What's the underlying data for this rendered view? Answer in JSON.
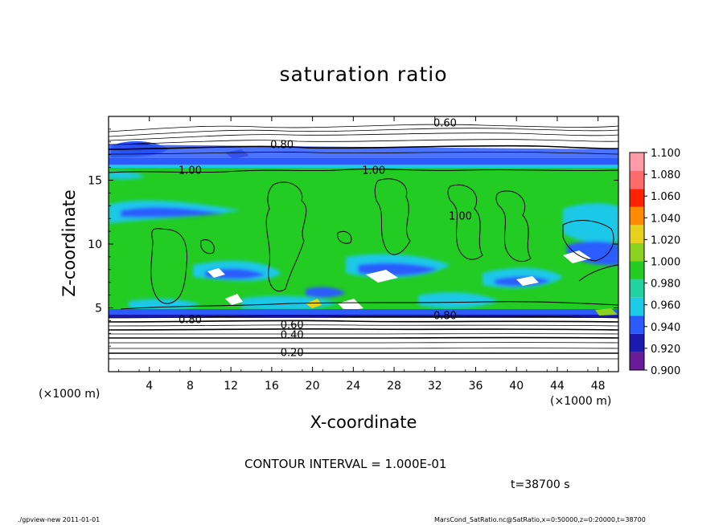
{
  "chart_data": {
    "type": "heatmap",
    "title": "saturation ratio",
    "xlabel": "X-coordinate",
    "ylabel": "Z-coordinate",
    "x_unit": "(×1000 m)",
    "x_ticks": [
      4,
      8,
      12,
      16,
      20,
      24,
      28,
      32,
      36,
      40,
      44,
      48
    ],
    "y_ticks": [
      5,
      10,
      15
    ],
    "xlim": [
      0,
      50
    ],
    "ylim": [
      0,
      20
    ],
    "colorbar": {
      "levels": [
        0.9,
        0.92,
        0.94,
        0.96,
        0.98,
        1.0,
        1.02,
        1.04,
        1.06,
        1.08,
        1.1
      ],
      "tick_labels": [
        "0.900",
        "0.920",
        "0.940",
        "0.960",
        "0.980",
        "1.000",
        "1.020",
        "1.040",
        "1.060",
        "1.080",
        "1.100"
      ],
      "colors": [
        "#6a1b9a",
        "#1a1ab0",
        "#2b5bff",
        "#1ec8e8",
        "#22d2a0",
        "#22cc22",
        "#8ad21e",
        "#e6d21e",
        "#ff8c00",
        "#ff2200",
        "#ff6b6b",
        "#ff9aa6"
      ]
    },
    "contour_interval_value": "1.000E-01",
    "contour_labels": [
      {
        "text": "0.60",
        "x": 33,
        "z": 19.4
      },
      {
        "text": "0.80",
        "x": 17,
        "z": 17.7
      },
      {
        "text": "1.00",
        "x": 8,
        "z": 15.7
      },
      {
        "text": "1.00",
        "x": 26,
        "z": 15.7
      },
      {
        "text": "1.00",
        "x": 34.5,
        "z": 12.1
      },
      {
        "text": "0.80",
        "x": 8,
        "z": 4.0
      },
      {
        "text": "0.60",
        "x": 18,
        "z": 3.6
      },
      {
        "text": "0.80",
        "x": 33,
        "z": 4.3
      },
      {
        "text": "0.40",
        "x": 18,
        "z": 2.8
      },
      {
        "text": "0.20",
        "x": 18,
        "z": 1.4
      }
    ]
  },
  "labels": {
    "contour_interval": "CONTOUR INTERVAL = 1.000E-01",
    "time": "t=38700 s",
    "footer_left": "./gpview-new 2011-01-01",
    "footer_right": "MarsCond_SatRatio.nc@SatRatio,x=0:50000,z=0:20000,t=38700"
  }
}
